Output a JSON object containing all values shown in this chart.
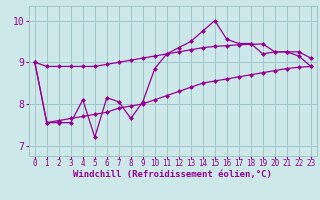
{
  "bg_color": "#cce8e8",
  "line_color": "#990099",
  "xlabel": "Windchill (Refroidissement éolien,°C)",
  "xlim": [
    -0.5,
    23.5
  ],
  "ylim": [
    6.75,
    10.35
  ],
  "xticks": [
    0,
    1,
    2,
    3,
    4,
    5,
    6,
    7,
    8,
    9,
    10,
    11,
    12,
    13,
    14,
    15,
    16,
    17,
    18,
    19,
    20,
    21,
    22,
    23
  ],
  "yticks": [
    7,
    8,
    9,
    10
  ],
  "grid_color": "#a0c8c8",
  "line1_x": [
    0,
    1,
    2,
    3,
    4,
    5,
    6,
    7,
    8,
    9,
    10,
    11,
    12,
    13,
    14,
    15,
    16,
    17,
    18,
    19,
    20,
    21,
    22,
    23
  ],
  "line1_y": [
    9.0,
    8.9,
    8.9,
    8.9,
    8.9,
    8.9,
    8.95,
    9.0,
    9.05,
    9.1,
    9.15,
    9.2,
    9.25,
    9.3,
    9.35,
    9.38,
    9.4,
    9.42,
    9.43,
    9.44,
    9.25,
    9.25,
    9.25,
    9.1
  ],
  "line2_x": [
    0,
    1,
    2,
    3,
    4,
    5,
    6,
    7,
    8,
    9,
    10,
    11,
    12,
    13,
    14,
    15,
    16,
    17,
    18,
    19,
    20,
    21,
    22,
    23
  ],
  "line2_y": [
    9.0,
    7.55,
    7.55,
    7.55,
    8.1,
    7.2,
    8.15,
    8.05,
    7.65,
    8.05,
    8.85,
    9.2,
    9.35,
    9.5,
    9.75,
    10.0,
    9.55,
    9.45,
    9.45,
    9.2,
    9.25,
    9.25,
    9.15,
    8.9
  ],
  "line3_x": [
    0,
    1,
    2,
    3,
    4,
    5,
    6,
    7,
    8,
    9,
    10,
    11,
    12,
    13,
    14,
    15,
    16,
    17,
    18,
    19,
    20,
    21,
    22,
    23
  ],
  "line3_y": [
    9.0,
    7.55,
    7.6,
    7.65,
    7.7,
    7.75,
    7.8,
    7.9,
    7.95,
    8.0,
    8.1,
    8.2,
    8.3,
    8.4,
    8.5,
    8.55,
    8.6,
    8.65,
    8.7,
    8.75,
    8.8,
    8.85,
    8.88,
    8.9
  ],
  "marker": "D",
  "markersize": 2.5,
  "linewidth": 0.9,
  "xlabel_fontsize": 6.5,
  "tick_fontsize_x": 5.5,
  "tick_fontsize_y": 7.0
}
